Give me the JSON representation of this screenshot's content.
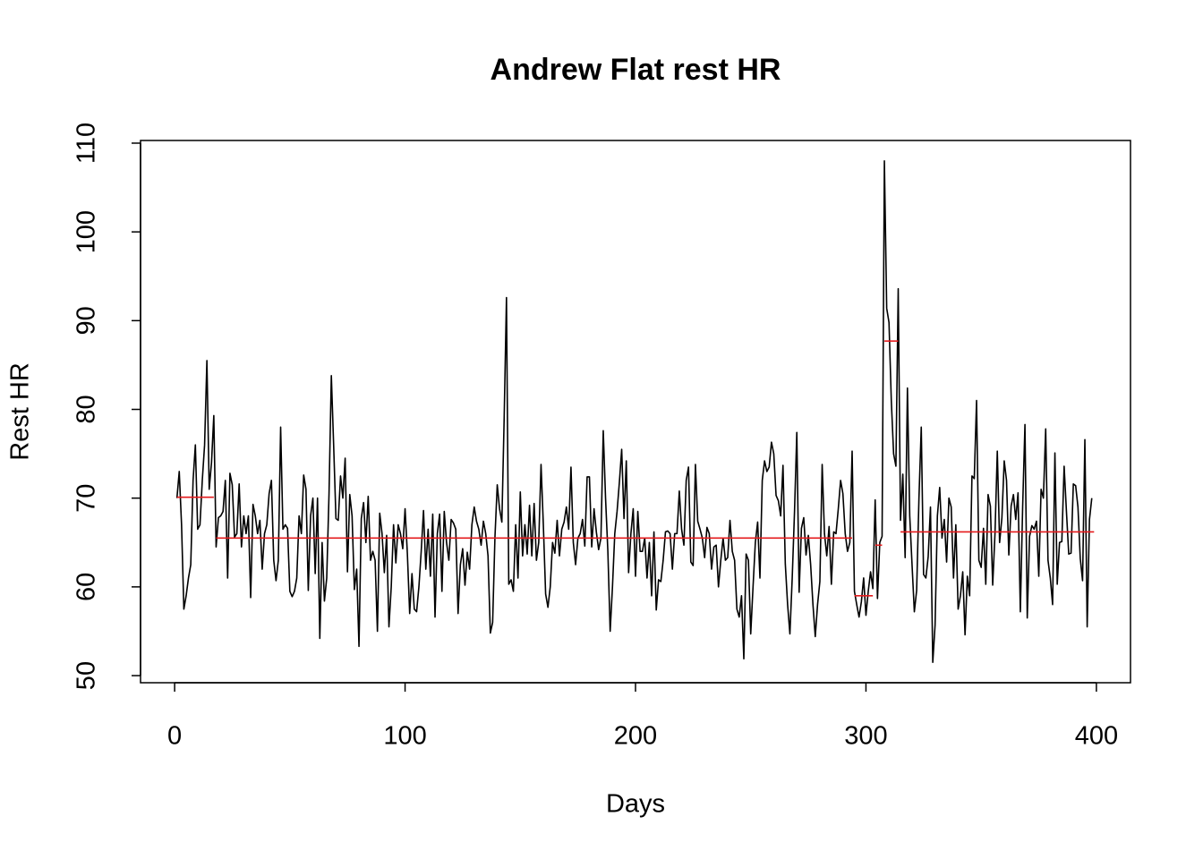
{
  "chart_data": {
    "type": "line",
    "title": "Andrew Flat rest HR",
    "x_label": "Days",
    "y_label": "Rest HR",
    "color": "#000000",
    "xlim": [
      -14.8,
      414.8
    ],
    "ylim": [
      49.2,
      110.3
    ],
    "xticks": [
      0,
      100,
      200,
      300,
      400
    ],
    "yticks": [
      50,
      60,
      70,
      80,
      90,
      100,
      110
    ],
    "x": [
      1,
      2,
      3,
      4,
      5,
      6,
      7,
      8,
      9,
      10,
      11,
      12,
      13,
      14,
      15,
      16,
      17,
      18,
      19,
      20,
      21,
      22,
      23,
      24,
      25,
      26,
      27,
      28,
      29,
      30,
      31,
      32,
      33,
      34,
      35,
      36,
      37,
      38,
      39,
      40,
      41,
      42,
      43,
      44,
      45,
      46,
      47,
      48,
      49,
      50,
      51,
      52,
      53,
      54,
      55,
      56,
      57,
      58,
      59,
      60,
      61,
      62,
      63,
      64,
      65,
      66,
      67,
      68,
      69,
      70,
      71,
      72,
      73,
      74,
      75,
      76,
      77,
      78,
      79,
      80,
      81,
      82,
      83,
      84,
      85,
      86,
      87,
      88,
      89,
      90,
      91,
      92,
      93,
      94,
      95,
      96,
      97,
      98,
      99,
      100,
      101,
      102,
      103,
      104,
      105,
      106,
      107,
      108,
      109,
      110,
      111,
      112,
      113,
      114,
      115,
      116,
      117,
      118,
      119,
      120,
      121,
      122,
      123,
      124,
      125,
      126,
      127,
      128,
      129,
      130,
      131,
      132,
      133,
      134,
      135,
      136,
      137,
      138,
      139,
      140,
      141,
      142,
      143,
      144,
      145,
      146,
      147,
      148,
      149,
      150,
      151,
      152,
      153,
      154,
      155,
      156,
      157,
      158,
      159,
      160,
      161,
      162,
      163,
      164,
      165,
      166,
      167,
      168,
      169,
      170,
      171,
      172,
      173,
      174,
      175,
      176,
      177,
      178,
      179,
      180,
      181,
      182,
      183,
      184,
      185,
      186,
      187,
      188,
      189,
      190,
      191,
      192,
      193,
      194,
      195,
      196,
      197,
      198,
      199,
      200,
      201,
      202,
      203,
      204,
      205,
      206,
      207,
      208,
      209,
      210,
      211,
      212,
      213,
      214,
      215,
      216,
      217,
      218,
      219,
      220,
      221,
      222,
      223,
      224,
      225,
      226,
      227,
      228,
      229,
      230,
      231,
      232,
      233,
      234,
      235,
      236,
      237,
      238,
      239,
      240,
      241,
      242,
      243,
      244,
      245,
      246,
      247,
      248,
      249,
      250,
      251,
      252,
      253,
      254,
      255,
      256,
      257,
      258,
      259,
      260,
      261,
      262,
      263,
      264,
      265,
      266,
      267,
      268,
      269,
      270,
      271,
      272,
      273,
      274,
      275,
      276,
      277,
      278,
      279,
      280,
      281,
      282,
      283,
      284,
      285,
      286,
      287,
      288,
      289,
      290,
      291,
      292,
      293,
      294,
      295,
      296,
      297,
      298,
      299,
      300,
      301,
      302,
      303,
      304,
      305,
      306,
      307,
      308,
      309,
      310,
      311,
      312,
      313,
      314,
      315,
      316,
      317,
      318,
      319,
      320,
      321,
      322,
      323,
      324,
      325,
      326,
      327,
      328,
      329,
      330,
      331,
      332,
      333,
      334,
      335,
      336,
      337,
      338,
      339,
      340,
      341,
      342,
      343,
      344,
      345,
      346,
      347,
      348,
      349,
      350,
      351,
      352,
      353,
      354,
      355,
      356,
      357,
      358,
      359,
      360,
      361,
      362,
      363,
      364,
      365,
      366,
      367,
      368,
      369,
      370,
      371,
      372,
      373,
      374,
      375,
      376,
      377,
      378,
      379,
      380,
      381,
      382,
      383,
      384,
      385,
      386,
      387,
      388,
      389,
      390,
      391,
      392,
      393,
      394,
      395,
      396,
      397,
      398
    ],
    "values": [
      70,
      73,
      67,
      57.5,
      59,
      61,
      62.5,
      72,
      76,
      66.5,
      67,
      72,
      76,
      85.5,
      71,
      74,
      79.3,
      64.5,
      67.8,
      68,
      68.5,
      72,
      61,
      72.8,
      71.5,
      65.6,
      66,
      71.6,
      64.5,
      68,
      66,
      68,
      58.8,
      69.3,
      68,
      66,
      67.5,
      62,
      66,
      67,
      70.5,
      72,
      63,
      60.7,
      63,
      78,
      66.5,
      67,
      66.6,
      59.5,
      58.9,
      59.5,
      61,
      68,
      66,
      72.6,
      71,
      59.6,
      68,
      70,
      61.5,
      70,
      54.2,
      65,
      58.4,
      61,
      70.5,
      83.8,
      76,
      67.7,
      67.5,
      72.5,
      70,
      74.5,
      61.7,
      70.4,
      68,
      59.7,
      62,
      53.3,
      67.7,
      69.5,
      65,
      70.2,
      63,
      64,
      63,
      55,
      68.3,
      66,
      61.6,
      65.8,
      55.5,
      60,
      67,
      62.7,
      67,
      66,
      64.3,
      68.8,
      63.7,
      57,
      61.5,
      57.5,
      57.2,
      60,
      64,
      68.6,
      62,
      66.5,
      61.2,
      68.2,
      56.6,
      66,
      68.2,
      59.5,
      68.5,
      65,
      63,
      67.6,
      67.2,
      66.5,
      57,
      62.5,
      64.3,
      60.2,
      63.9,
      62,
      67,
      69,
      67.4,
      66.5,
      64.7,
      67.4,
      66,
      63.5,
      54.8,
      56,
      65.6,
      71.5,
      68.8,
      67.3,
      79,
      92.6,
      60.3,
      60.8,
      59.5,
      67,
      61,
      70.7,
      63.5,
      67,
      63.7,
      69.2,
      63.5,
      69.4,
      63,
      65,
      73.8,
      67,
      59.2,
      57.7,
      60,
      65,
      63.8,
      67.5,
      63.5,
      66.5,
      67.3,
      69,
      66.5,
      73.5,
      65,
      62.5,
      65.5,
      66,
      67.6,
      64.6,
      72.4,
      72.4,
      64.5,
      68.8,
      66.2,
      64.2,
      65.5,
      77.6,
      70,
      64,
      55,
      60,
      66,
      68.5,
      71.8,
      75.5,
      67.7,
      74.2,
      61.6,
      66,
      68.8,
      61.2,
      68.5,
      64,
      64,
      65.5,
      61,
      65,
      59,
      66.2,
      57.4,
      60.8,
      60.6,
      63,
      66.2,
      66.3,
      66,
      62,
      66,
      66,
      70.8,
      66.5,
      64.7,
      72,
      73.5,
      62.8,
      62.4,
      73.8,
      67.4,
      66.5,
      65.5,
      63.3,
      66.7,
      66,
      62,
      64.5,
      64.7,
      60,
      63,
      65.5,
      63,
      63.3,
      67.5,
      64,
      63,
      57.5,
      56.6,
      59,
      51.9,
      63.7,
      63,
      54.7,
      60,
      65,
      67.3,
      61,
      72,
      74.2,
      73,
      73.5,
      76.3,
      75,
      70.3,
      69.7,
      68,
      73.7,
      62.6,
      58,
      54.7,
      61,
      68.5,
      77.4,
      59.4,
      66.6,
      67.8,
      63.6,
      65.8,
      62.5,
      58,
      54.4,
      58,
      60.6,
      73.8,
      66,
      63.5,
      66.8,
      60.3,
      66.2,
      66,
      68.8,
      72,
      70.5,
      66,
      64,
      65,
      75.3,
      59.5,
      58,
      56.6,
      58.3,
      61,
      56.8,
      59.5,
      61.7,
      59.8,
      69.8,
      58.7,
      65,
      65.7,
      108,
      91.4,
      89.8,
      81,
      75,
      73.6,
      93.6,
      67.5,
      72.7,
      63.3,
      82.4,
      68,
      62.5,
      57.2,
      59.6,
      70,
      78,
      61.4,
      61,
      63.4,
      69,
      51.5,
      55.7,
      68,
      71.2,
      65.5,
      67.6,
      62.8,
      70,
      69,
      61,
      67,
      57.5,
      59,
      61.7,
      54.6,
      61.2,
      59,
      72.5,
      72.2,
      81,
      63,
      62.2,
      66.6,
      60.3,
      70.4,
      69.1,
      60.2,
      66,
      75.3,
      65,
      67.8,
      74.2,
      72,
      63.6,
      69.1,
      70.4,
      67.6,
      70.6,
      57.2,
      69,
      78.3,
      56.5,
      65.7,
      66.9,
      66.5,
      67.4,
      61.2,
      71,
      70,
      77.8,
      63,
      61,
      58,
      75.1,
      60.3,
      65,
      65.1,
      73.6,
      68.5,
      63.7,
      63.8,
      71.6,
      71.4,
      69,
      63.2,
      60.7,
      76.6,
      55.5,
      67.6,
      70
    ],
    "segment_color": "#e41a1c",
    "segments": [
      {
        "start": 1,
        "end": 17,
        "value": 70.1
      },
      {
        "start": 18,
        "end": 294,
        "value": 65.5
      },
      {
        "start": 295,
        "end": 303,
        "value": 59
      },
      {
        "start": 304,
        "end": 307,
        "value": 64.7
      },
      {
        "start": 308,
        "end": 314,
        "value": 87.7
      },
      {
        "start": 315,
        "end": 399,
        "value": 66.2
      }
    ]
  }
}
